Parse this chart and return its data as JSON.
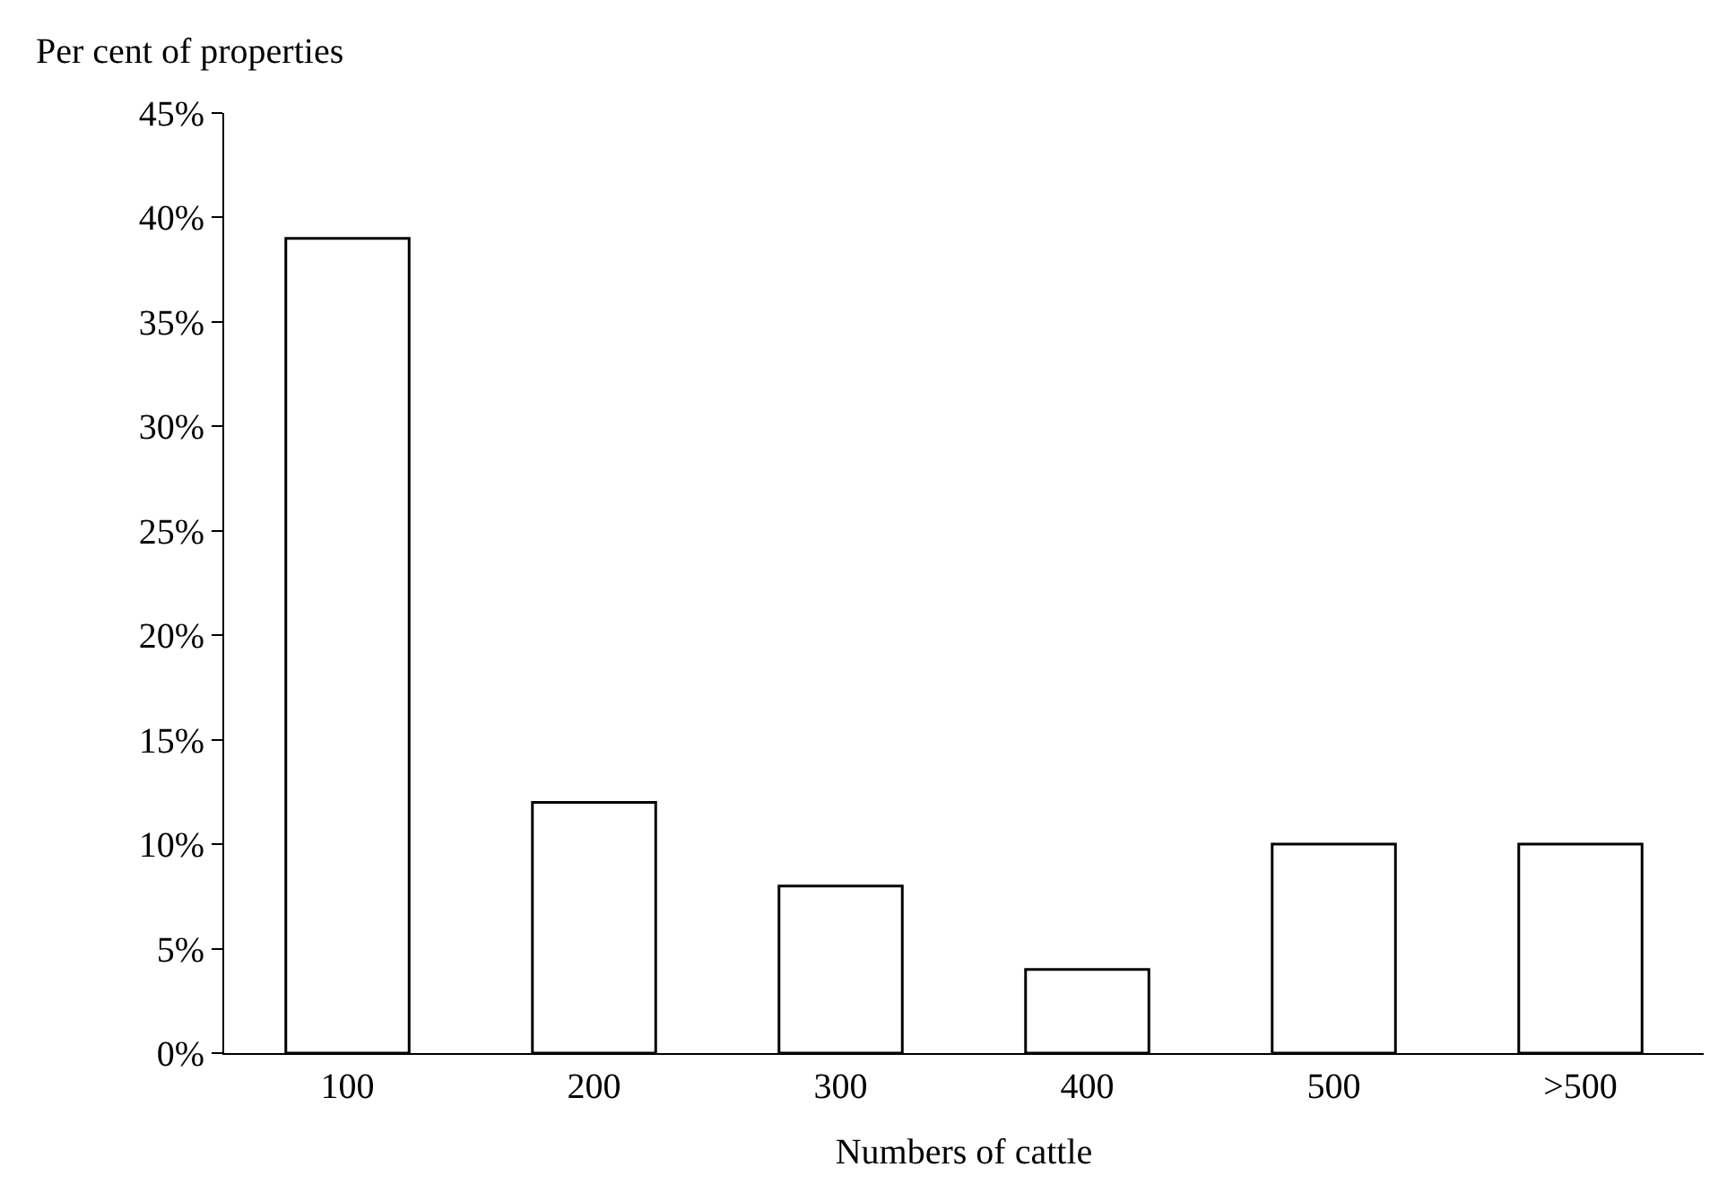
{
  "chart_data": {
    "type": "bar",
    "xlabel": "Numbers of cattle",
    "ylabel": "Per cent of properties",
    "categories": [
      "100",
      "200",
      "300",
      "400",
      "500",
      ">500"
    ],
    "values": [
      39,
      12,
      8,
      4,
      10,
      10
    ],
    "color": "#ffffff",
    "ylim": [
      0,
      45
    ],
    "yticks": [
      {
        "value": 0,
        "label": "0%"
      },
      {
        "value": 5,
        "label": "5%"
      },
      {
        "value": 10,
        "label": "10%"
      },
      {
        "value": 15,
        "label": "15%"
      },
      {
        "value": 20,
        "label": "20%"
      },
      {
        "value": 25,
        "label": "25%"
      },
      {
        "value": 30,
        "label": "30%"
      },
      {
        "value": 35,
        "label": "35%"
      },
      {
        "value": 40,
        "label": "40%"
      },
      {
        "value": 45,
        "label": "45%"
      }
    ],
    "grid": false
  }
}
